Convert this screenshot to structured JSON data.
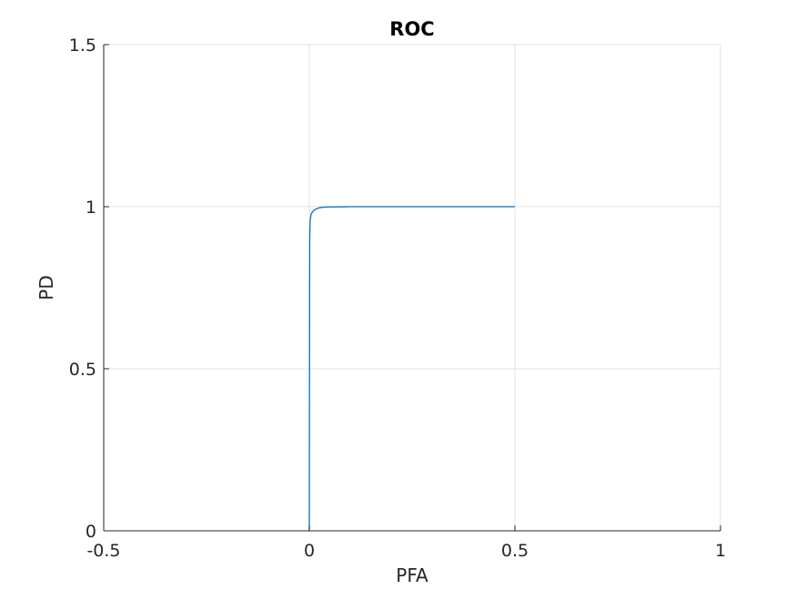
{
  "chart_data": {
    "type": "line",
    "title": "ROC",
    "xlabel": "PFA",
    "ylabel": "PD",
    "xlim": [
      -0.5,
      1
    ],
    "ylim": [
      0,
      1.5
    ],
    "xticks": [
      -0.5,
      0,
      0.5,
      1
    ],
    "yticks": [
      0,
      0.5,
      1,
      1.5
    ],
    "xtick_labels": [
      "-0.5",
      "0",
      "0.5",
      "1"
    ],
    "ytick_labels": [
      "0",
      "0.5",
      "1",
      "1.5"
    ],
    "grid": true,
    "series": [
      {
        "name": "ROC",
        "color": "#0072BD",
        "x": [
          0.0,
          0.0005,
          0.001,
          0.002,
          0.004,
          0.008,
          0.015,
          0.025,
          0.04,
          0.1,
          0.3,
          0.5
        ],
        "y": [
          0.0,
          0.5,
          0.9,
          0.955,
          0.975,
          0.985,
          0.992,
          0.997,
          0.999,
          1.0,
          1.0,
          1.0
        ]
      }
    ]
  }
}
